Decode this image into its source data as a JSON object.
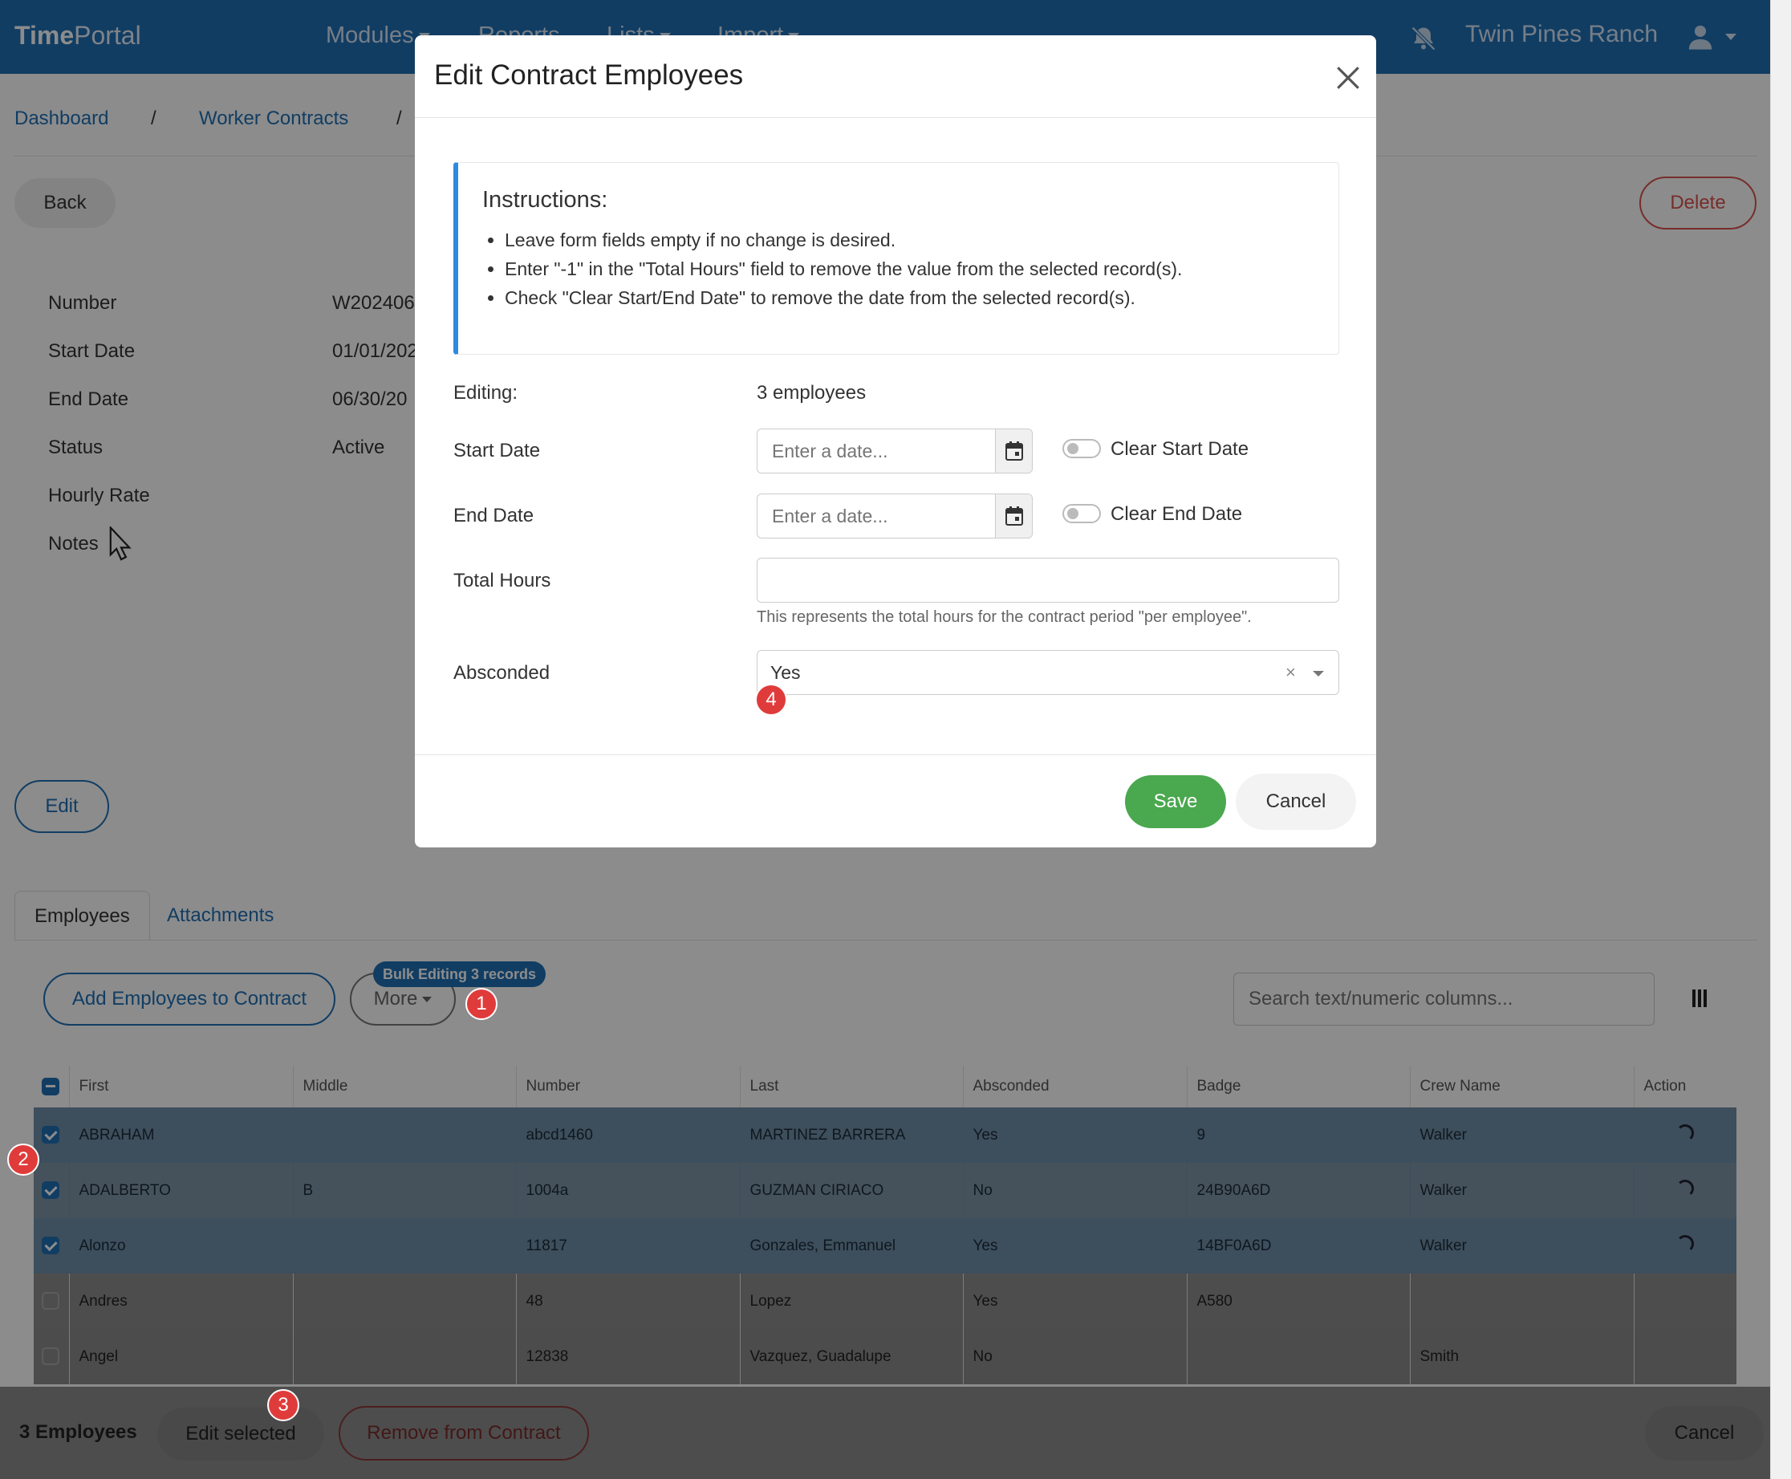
{
  "navbar": {
    "brand_bold": "Time",
    "brand_rest": "Portal",
    "items": [
      "Modules",
      "Reports",
      "Lists",
      "Import"
    ],
    "ranch": "Twin Pines Ranch"
  },
  "breadcrumb": [
    "Dashboard",
    "Worker Contracts"
  ],
  "buttons": {
    "back": "Back",
    "delete": "Delete",
    "edit": "Edit"
  },
  "details": [
    {
      "label": "Number",
      "value": "W202406"
    },
    {
      "label": "Start Date",
      "value": "01/01/202"
    },
    {
      "label": "End Date",
      "value": "06/30/20"
    },
    {
      "label": "Status",
      "value": "Active"
    },
    {
      "label": "Hourly Rate",
      "value": ""
    },
    {
      "label": "Notes",
      "value": ""
    }
  ],
  "tabs": [
    "Employees",
    "Attachments"
  ],
  "toolbar": {
    "add_label": "Add Employees to Contract",
    "more_label": "More",
    "bulk_badge": "Bulk Editing 3 records",
    "search_placeholder": "Search text/numeric columns..."
  },
  "table": {
    "headers": [
      "First",
      "Middle",
      "Number",
      "Last",
      "Absconded",
      "Badge",
      "Crew Name",
      "Action"
    ],
    "rows": [
      {
        "checked": true,
        "cells": [
          "ABRAHAM",
          "",
          "abcd1460",
          "MARTINEZ BARRERA",
          "Yes",
          "9",
          "Walker"
        ]
      },
      {
        "checked": true,
        "cells": [
          "ADALBERTO",
          "B",
          "1004a",
          "GUZMAN CIRIACO",
          "No",
          "24B90A6D",
          "Walker"
        ]
      },
      {
        "checked": true,
        "cells": [
          "Alonzo",
          "",
          "11817",
          "Gonzales, Emmanuel",
          "Yes",
          "14BF0A6D",
          "Walker"
        ]
      },
      {
        "checked": false,
        "cells": [
          "Andres",
          "",
          "48",
          "Lopez",
          "Yes",
          "A580",
          ""
        ]
      },
      {
        "checked": false,
        "cells": [
          "Angel",
          "",
          "12838",
          "Vazquez, Guadalupe",
          "No",
          "",
          "Smith"
        ]
      }
    ]
  },
  "bottom_bar": {
    "count": "3 Employees",
    "edit_selected": "Edit selected",
    "remove": "Remove from Contract",
    "cancel": "Cancel"
  },
  "modal": {
    "title": "Edit Contract Employees",
    "instructions_title": "Instructions:",
    "instructions": [
      "Leave form fields empty if no change is desired.",
      "Enter \"-1\" in the \"Total Hours\" field to remove the value from the selected record(s).",
      "Check \"Clear Start/End Date\" to remove the date from the selected record(s)."
    ],
    "editing_label": "Editing:",
    "editing_value": "3 employees",
    "start_date_label": "Start Date",
    "end_date_label": "End Date",
    "date_placeholder": "Enter a date...",
    "clear_start": "Clear Start Date",
    "clear_end": "Clear End Date",
    "total_hours_label": "Total Hours",
    "total_hours_value": "",
    "help_text": "This represents the total hours for the contract period \"per employee\".",
    "absconded_label": "Absconded",
    "absconded_value": "Yes",
    "clear_glyph": "×",
    "save": "Save",
    "cancel": "Cancel"
  },
  "steps": [
    "1",
    "2",
    "3",
    "4"
  ],
  "colors": {
    "primary": "#1f6fb5",
    "success": "#4aa84f",
    "danger": "#d9534f",
    "step": "#e03b3b"
  }
}
